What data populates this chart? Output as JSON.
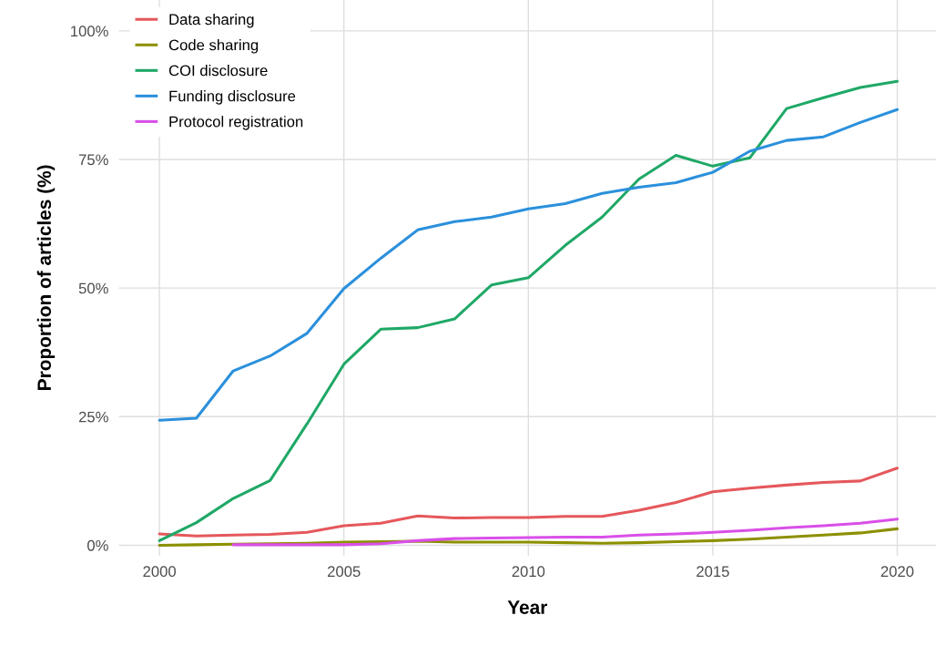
{
  "chart_data": {
    "type": "line",
    "xlabel": "Year",
    "ylabel": "Proportion of articles (%)",
    "x": [
      2000,
      2001,
      2002,
      2003,
      2004,
      2005,
      2006,
      2007,
      2008,
      2009,
      2010,
      2011,
      2012,
      2013,
      2014,
      2015,
      2016,
      2017,
      2018,
      2019,
      2020
    ],
    "series": [
      {
        "name": "Data sharing",
        "color": "#e5585c",
        "values": [
          2.2,
          1.8,
          2.0,
          2.1,
          2.5,
          3.8,
          4.3,
          5.7,
          5.3,
          5.4,
          5.4,
          5.6,
          5.6,
          6.8,
          8.3,
          10.4,
          11.1,
          11.7,
          12.2,
          12.5,
          15.0
        ]
      },
      {
        "name": "Code sharing",
        "color": "#8c9000",
        "values": [
          0.0,
          0.1,
          0.2,
          0.3,
          0.4,
          0.6,
          0.7,
          0.8,
          0.6,
          0.6,
          0.6,
          0.5,
          0.4,
          0.5,
          0.7,
          0.9,
          1.2,
          1.6,
          2.0,
          2.4,
          3.2
        ]
      },
      {
        "name": "COI disclosure",
        "color": "#1fa866",
        "values": [
          0.9,
          4.4,
          9.1,
          12.6,
          23.6,
          35.2,
          42.0,
          42.3,
          44.0,
          50.6,
          52.0,
          58.3,
          63.8,
          71.2,
          75.8,
          73.7,
          75.3,
          84.9,
          87.0,
          89.0,
          90.2
        ]
      },
      {
        "name": "Funding disclosure",
        "color": "#2b90dc",
        "values": [
          24.3,
          24.7,
          33.9,
          36.8,
          41.2,
          49.9,
          55.8,
          61.3,
          62.9,
          63.8,
          65.4,
          66.4,
          68.4,
          69.6,
          70.5,
          72.5,
          76.6,
          78.7,
          79.4,
          82.2,
          84.7
        ]
      },
      {
        "name": "Protocol registration",
        "color": "#d94fe8",
        "values": [
          null,
          null,
          0.1,
          0.1,
          0.1,
          0.1,
          0.3,
          0.9,
          1.3,
          1.4,
          1.5,
          1.6,
          1.6,
          2.0,
          2.2,
          2.5,
          2.9,
          3.4,
          3.8,
          4.3,
          5.1
        ]
      }
    ],
    "xlim": [
      1998.9,
      2021.05
    ],
    "xticks": [
      2000,
      2005,
      2010,
      2015,
      2020
    ],
    "ylim": [
      -2,
      106
    ],
    "yticks": [
      {
        "value": 0,
        "label": "0%"
      },
      {
        "value": 25,
        "label": "25%"
      },
      {
        "value": 50,
        "label": "50%"
      },
      {
        "value": 75,
        "label": "75%"
      },
      {
        "value": 100,
        "label": "100%"
      }
    ],
    "grid": true,
    "legend": "top left",
    "marker": "none",
    "line_style": "solid"
  }
}
